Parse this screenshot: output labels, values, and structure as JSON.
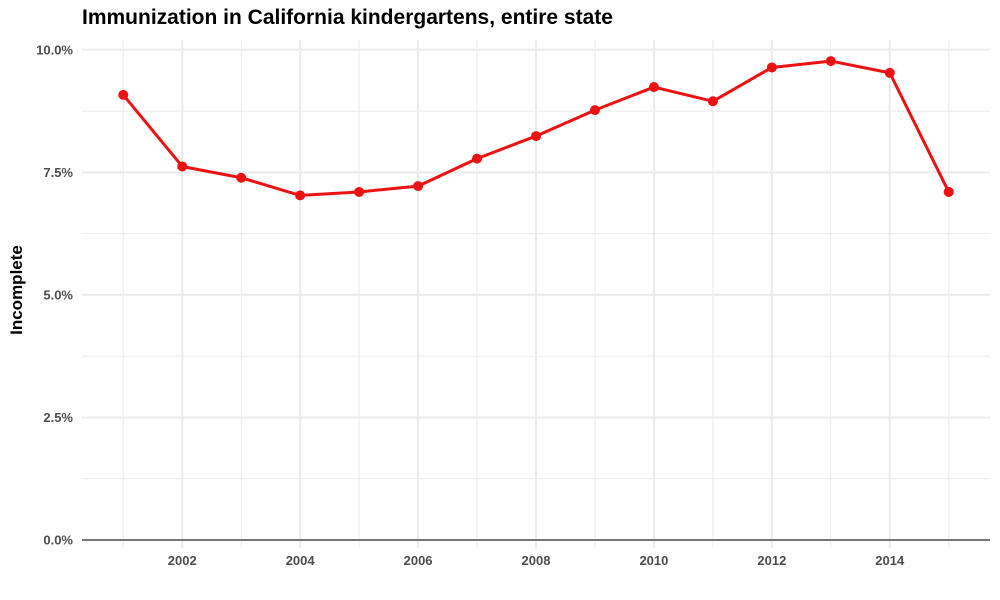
{
  "chart_data": {
    "type": "line",
    "title": "Immunization in California kindergartens, entire state",
    "xlabel": "",
    "ylabel": "Incomplete",
    "x": [
      2001,
      2002,
      2003,
      2004,
      2005,
      2006,
      2007,
      2008,
      2009,
      2010,
      2011,
      2012,
      2013,
      2014,
      2015
    ],
    "values": [
      9.08,
      7.62,
      7.39,
      7.03,
      7.1,
      7.22,
      7.78,
      8.24,
      8.77,
      9.24,
      8.95,
      9.64,
      9.77,
      9.53,
      7.1
    ],
    "value_unit": "percent",
    "xlim": [
      2000.3,
      2015.7
    ],
    "ylim": [
      0,
      10.2
    ],
    "x_ticks": [
      2002,
      2004,
      2006,
      2008,
      2010,
      2012,
      2014
    ],
    "x_tick_labels": [
      "2002",
      "2004",
      "2006",
      "2008",
      "2010",
      "2012",
      "2014"
    ],
    "y_ticks": [
      0,
      2.5,
      5,
      7.5,
      10
    ],
    "y_tick_labels": [
      "0.0%",
      "2.5%",
      "5.0%",
      "7.5%",
      "10.0%"
    ],
    "grid": true,
    "legend": "none",
    "line_color": "#ee1111",
    "grid_color": "#ebebeb",
    "baseline_color": "#000000"
  }
}
